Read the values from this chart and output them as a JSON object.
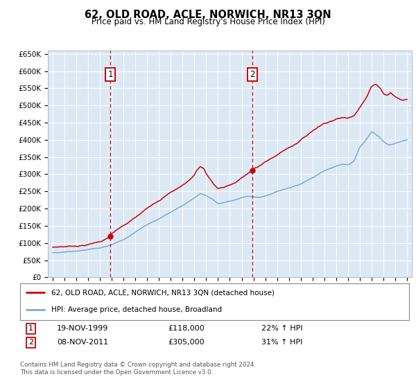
{
  "title": "62, OLD ROAD, ACLE, NORWICH, NR13 3QN",
  "subtitle": "Price paid vs. HM Land Registry's House Price Index (HPI)",
  "ylim": [
    0,
    660000
  ],
  "yticks": [
    0,
    50000,
    100000,
    150000,
    200000,
    250000,
    300000,
    350000,
    400000,
    450000,
    500000,
    550000,
    600000,
    650000
  ],
  "ytick_labels": [
    "£0",
    "£50K",
    "£100K",
    "£150K",
    "£200K",
    "£250K",
    "£300K",
    "£350K",
    "£400K",
    "£450K",
    "£500K",
    "£550K",
    "£600K",
    "£650K"
  ],
  "bg_color": "#dce9f5",
  "red_line_color": "#cc0000",
  "blue_line_color": "#7aaad0",
  "sale1_year": 1999.88,
  "sale1_price": 118000,
  "sale1_label": "1",
  "sale2_year": 2011.92,
  "sale2_price": 305000,
  "sale2_label": "2",
  "sale1_date": "19-NOV-1999",
  "sale1_amount": "£118,000",
  "sale1_hpi": "22% ↑ HPI",
  "sale2_date": "08-NOV-2011",
  "sale2_amount": "£305,000",
  "sale2_hpi": "31% ↑ HPI",
  "legend_line1": "62, OLD ROAD, ACLE, NORWICH, NR13 3QN (detached house)",
  "legend_line2": "HPI: Average price, detached house, Broadland",
  "footnote1": "Contains HM Land Registry data © Crown copyright and database right 2024.",
  "footnote2": "This data is licensed under the Open Government Licence v3.0.",
  "xlim_left": 1994.6,
  "xlim_right": 2025.4,
  "xtick_start": 1995,
  "xtick_end": 2025
}
